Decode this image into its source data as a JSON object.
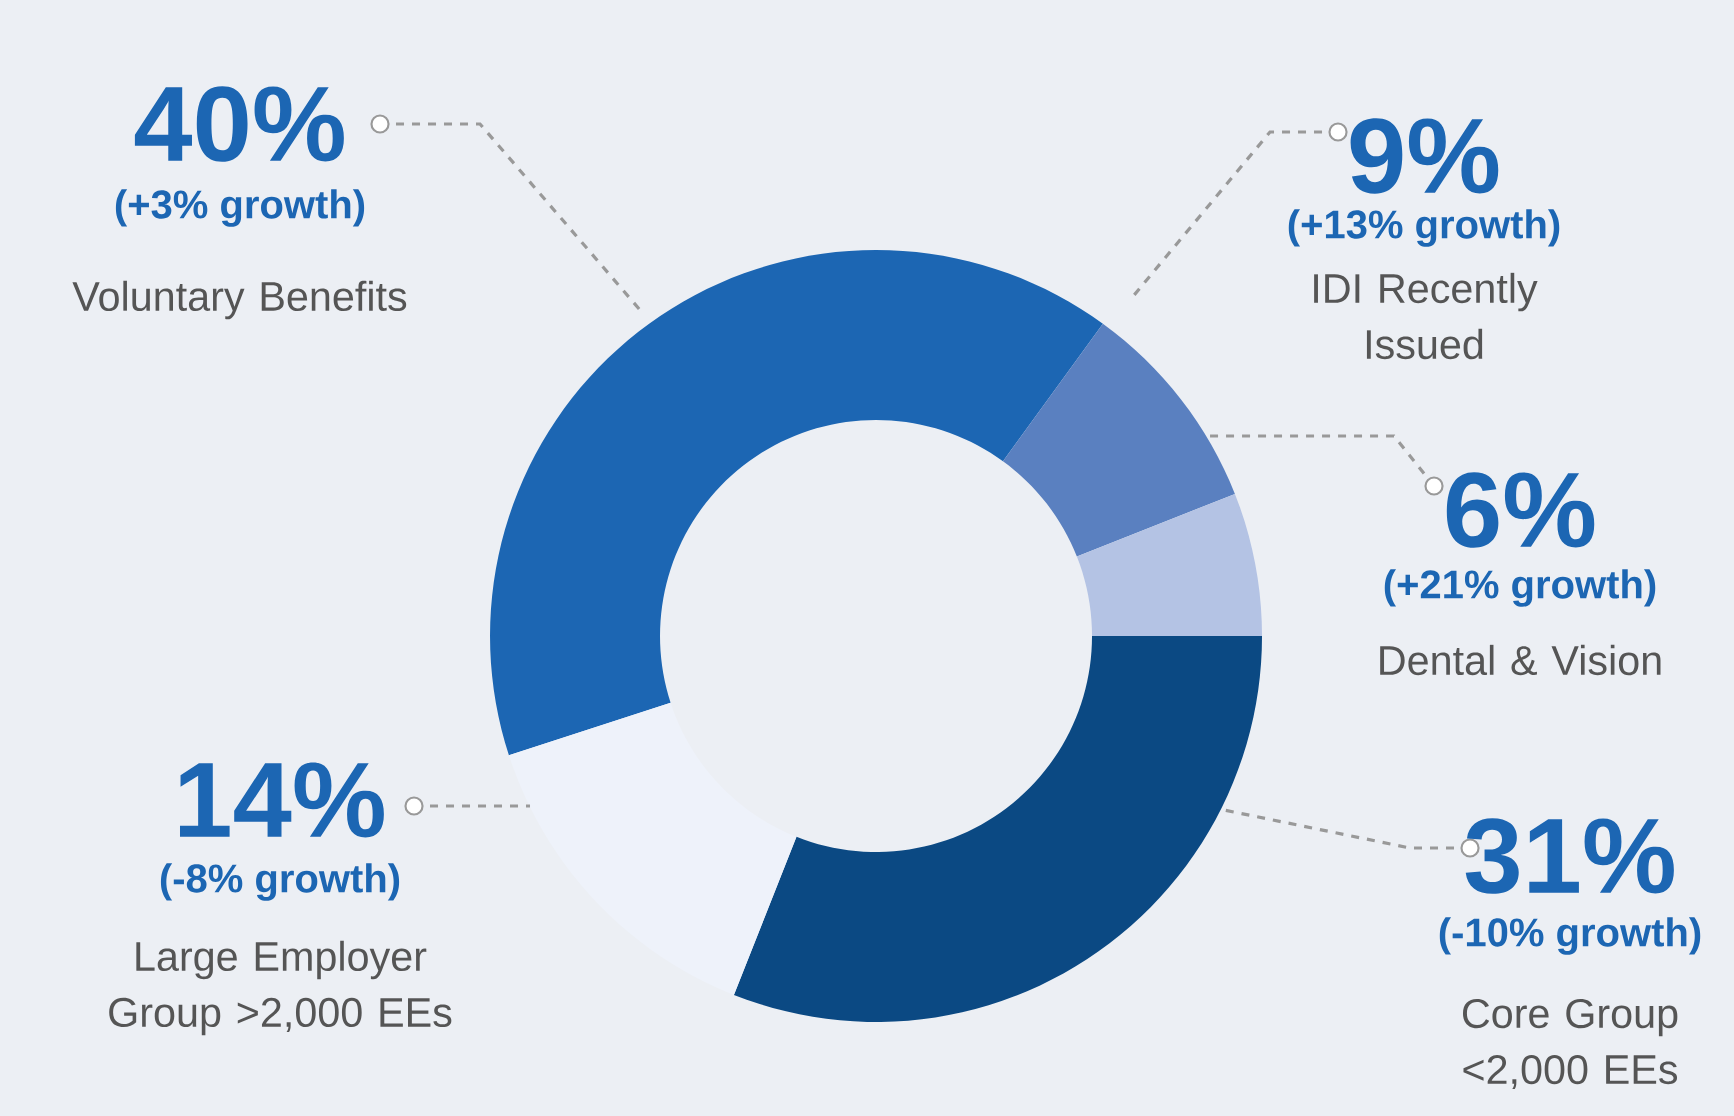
{
  "chart_data": {
    "type": "donut",
    "categories": [
      "Voluntary Benefits",
      "IDI Recently Issued",
      "Dental & Vision",
      "Core Group <2,000 EEs",
      "Large Employer Group >2,000 EEs"
    ],
    "values": [
      40,
      9,
      6,
      31,
      14
    ],
    "colors": [
      "#1c66b3",
      "#5a80c0",
      "#b4c3e4",
      "#0b4983",
      "#eef2fa"
    ],
    "value_labels": [
      "40%",
      "9%",
      "6%",
      "31%",
      "14%"
    ],
    "annotations": [
      "(+3% growth)",
      "(+13% growth)",
      "(+21% growth)",
      "(-10% growth)",
      "(-8% growth)"
    ]
  }
}
